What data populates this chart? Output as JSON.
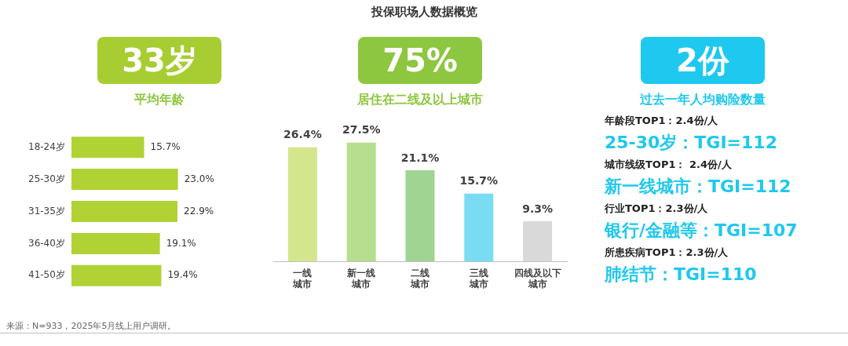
{
  "chart_data": [
    {
      "type": "other",
      "title": "投保职场人数据概览",
      "annotations": [
        "来源：N=933，2025年5月线上用户调研。"
      ]
    },
    {
      "type": "bar",
      "orientation": "horizontal",
      "title": "33岁",
      "subtitle": "平均年龄",
      "categories": [
        "18-24岁",
        "25-30岁",
        "31-35岁",
        "36-40岁",
        "41-50岁"
      ],
      "values": [
        15.7,
        23.0,
        22.9,
        19.1,
        19.4
      ],
      "color": "#b0d235",
      "value_labels": [
        "15.7%",
        "23.0%",
        "22.9%",
        "19.1%",
        "19.4%"
      ]
    },
    {
      "type": "bar",
      "title": "75%",
      "subtitle": "居住在二线及以上城市",
      "categories": [
        "一线城市",
        "新一线城市",
        "二线城市",
        "三线城市",
        "四线及以下城市"
      ],
      "values": [
        26.4,
        27.5,
        21.1,
        15.7,
        9.3
      ],
      "colors": [
        "#d3e68e",
        "#b6de8e",
        "#a0d492",
        "#79dcf2",
        "#d9d9d9"
      ],
      "value_labels": [
        "26.4%",
        "27.5%",
        "21.1%",
        "15.7%",
        "9.3%"
      ]
    },
    {
      "type": "other",
      "title": "2份",
      "subtitle": "过去一年人均购险数量",
      "annotations": [
        "年龄段TOP1：2.4份/人",
        "25-30岁：TGI=112",
        "城市线级TOP1： 2.4份/人",
        "新一线城市：TGI=112",
        "行业TOP1：2.3份/人",
        "银行/金融等：TGI=107",
        "所患疾病TOP1：2.3份/人",
        "肺结节：TGI=110"
      ]
    }
  ]
}
